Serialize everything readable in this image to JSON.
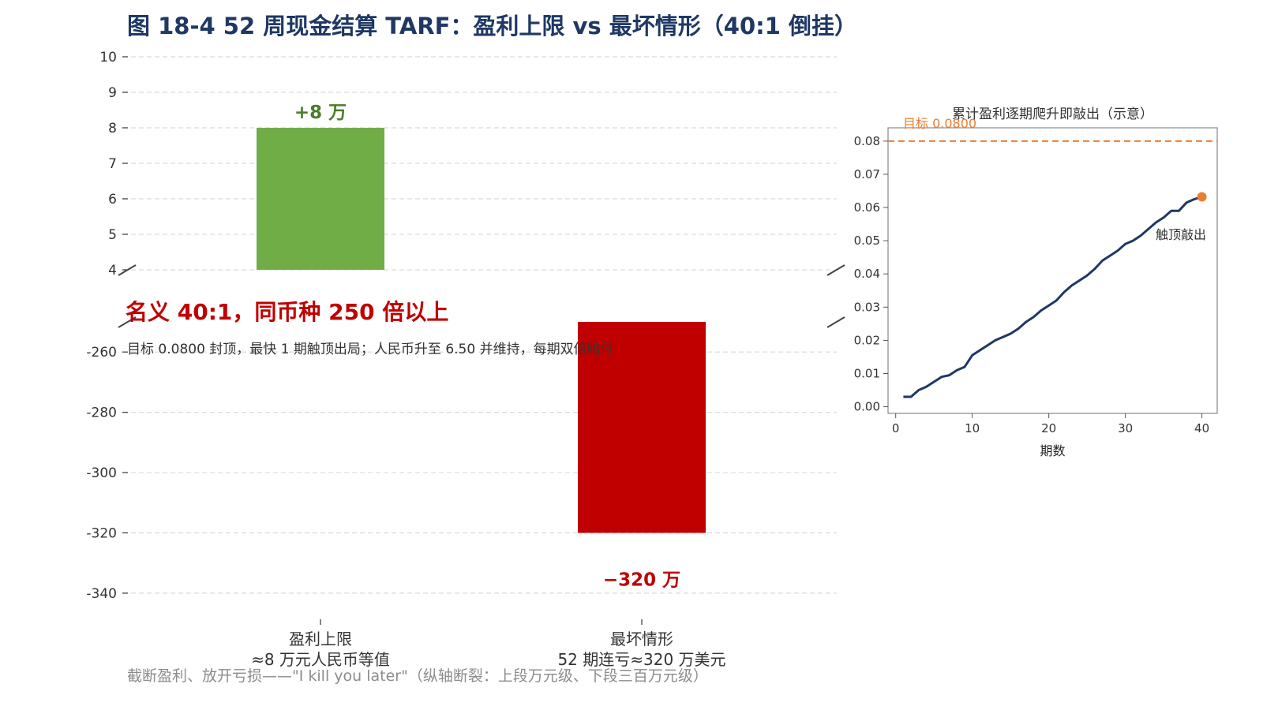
{
  "title": "图 18-4 52 周现金结算 TARF：盈利上限 vs 最坏情形（40:1 倒挂）",
  "headline": "名义 40:1，同币种 250 倍以上",
  "subline": "目标 0.0800 封顶，最快 1 期触顶出局；人民币升至 6.50 并维持，每期双倍赔付",
  "footnote": "截断盈利、放开亏损——\"I kill you later\"（纵轴断裂：上段万元级、下段三百万元级）",
  "colors": {
    "title": "#1f3864",
    "profit": "#70ad47",
    "loss": "#c00000",
    "line": "#1f3864",
    "target": "#ed7d31",
    "grid": "#d9d9d9"
  },
  "chart_data": [
    {
      "type": "bar",
      "broken_axis": true,
      "categories": [
        "盈利上限\n≈8 万元人民币等值",
        "最坏情形\n52 期连亏≈320 万美元"
      ],
      "values": [
        8,
        -320
      ],
      "data_labels": [
        "+8 万",
        "−320 万"
      ],
      "upper_ylim": [
        4,
        10
      ],
      "upper_yticks": [
        4,
        5,
        6,
        7,
        8,
        9,
        10
      ],
      "lower_ylim": [
        -345,
        -250
      ],
      "lower_yticks": [
        -260,
        -280,
        -300,
        -320,
        -340
      ],
      "grid": true,
      "colors": [
        "#70ad47",
        "#c00000"
      ]
    },
    {
      "type": "line",
      "title": "累计盈利逐期爬升即敲出（示意）",
      "xlabel": "期数",
      "ylabel": "",
      "xlim": [
        -1,
        42
      ],
      "ylim": [
        -0.002,
        0.084
      ],
      "xticks": [
        0,
        10,
        20,
        30,
        40
      ],
      "yticks": [
        "0.00",
        "0.01",
        "0.02",
        "0.03",
        "0.04",
        "0.05",
        "0.06",
        "0.07",
        "0.08"
      ],
      "target": 0.08,
      "target_label": "目标 0.0800",
      "end_annotation": "触顶敲出",
      "x": [
        1,
        2,
        3,
        4,
        5,
        6,
        7,
        8,
        9,
        10,
        11,
        12,
        13,
        14,
        15,
        16,
        17,
        18,
        19,
        20,
        21,
        22,
        23,
        24,
        25,
        26,
        27,
        28,
        29,
        30,
        31,
        32,
        33,
        34,
        35,
        36,
        37,
        38,
        39,
        40
      ],
      "y": [
        0.003,
        0.003,
        0.005,
        0.006,
        0.0075,
        0.009,
        0.0095,
        0.011,
        0.012,
        0.0155,
        0.017,
        0.0185,
        0.02,
        0.021,
        0.022,
        0.0235,
        0.0255,
        0.027,
        0.029,
        0.0305,
        0.032,
        0.0345,
        0.0365,
        0.038,
        0.0395,
        0.0415,
        0.044,
        0.0455,
        0.047,
        0.049,
        0.05,
        0.0515,
        0.0535,
        0.0555,
        0.057,
        0.059,
        0.059,
        0.0615,
        0.0625,
        0.0632
      ]
    }
  ]
}
